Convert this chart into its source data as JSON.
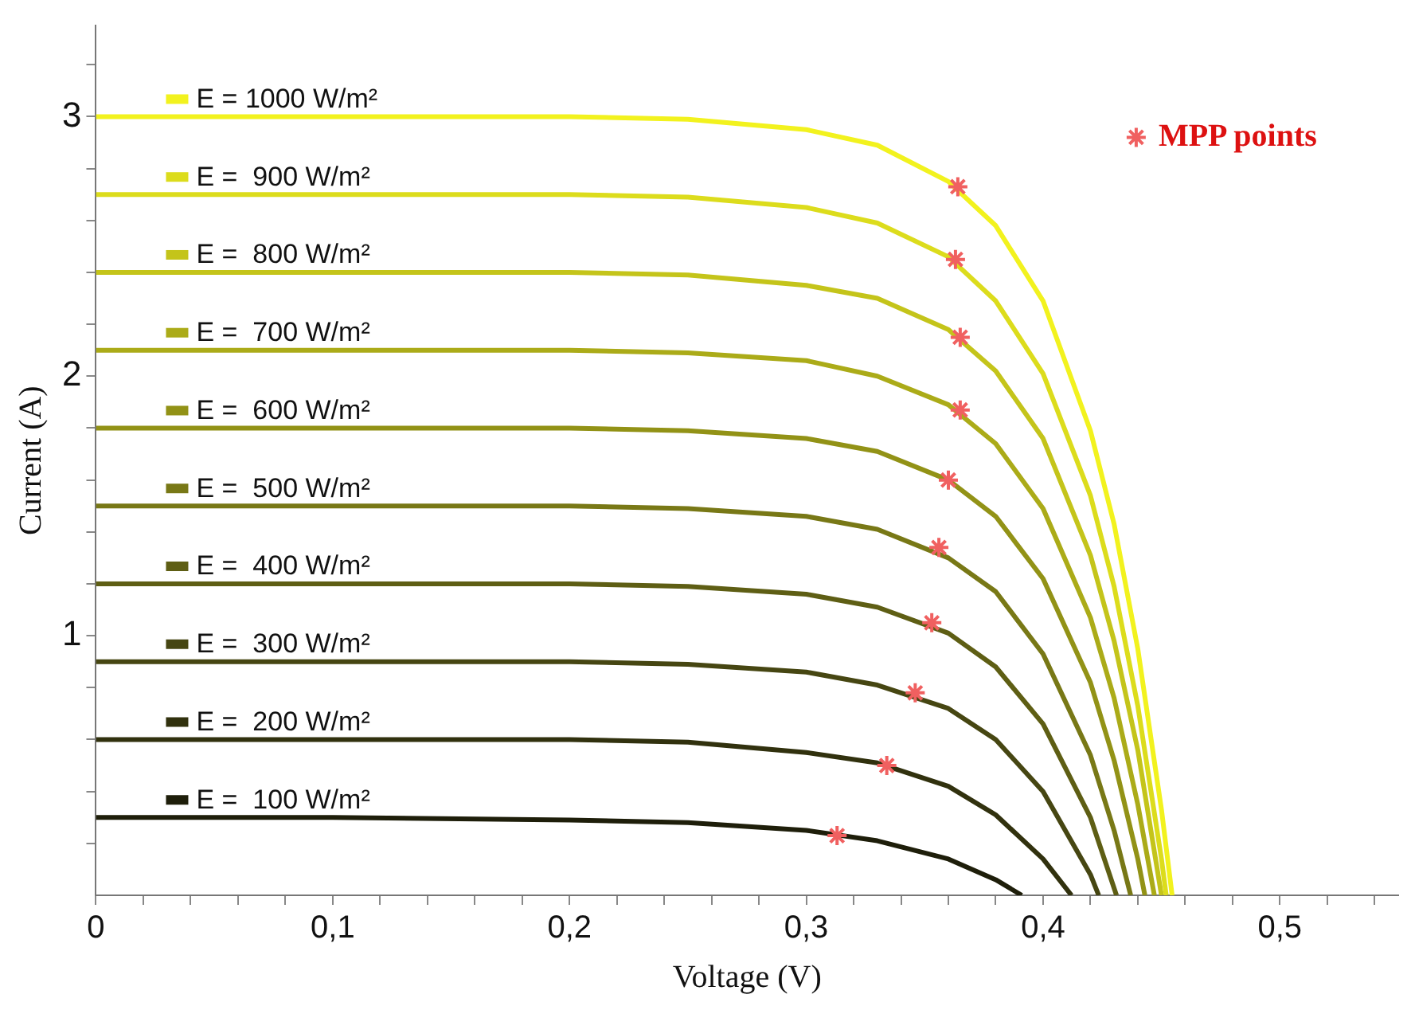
{
  "chart_data": {
    "type": "line",
    "xlabel": "Voltage (V)",
    "ylabel": "Current (A)",
    "xlim": [
      0,
      0.55
    ],
    "ylim": [
      0,
      3.35
    ],
    "xticks": [
      0,
      {
        "value": 0.02,
        "label": null
      },
      {
        "value": 0.04,
        "label": null
      },
      {
        "value": 0.06,
        "label": null
      },
      {
        "value": 0.08,
        "label": null
      },
      {
        "value": 0.1,
        "label": "0,1"
      },
      {
        "value": 0.12,
        "label": null
      },
      {
        "value": 0.14,
        "label": null
      },
      {
        "value": 0.16,
        "label": null
      },
      {
        "value": 0.18,
        "label": null
      },
      {
        "value": 0.2,
        "label": "0,2"
      },
      {
        "value": 0.22,
        "label": null
      },
      {
        "value": 0.24,
        "label": null
      },
      {
        "value": 0.26,
        "label": null
      },
      {
        "value": 0.28,
        "label": null
      },
      {
        "value": 0.3,
        "label": "0,3"
      },
      {
        "value": 0.32,
        "label": null
      },
      {
        "value": 0.34,
        "label": null
      },
      {
        "value": 0.36,
        "label": null
      },
      {
        "value": 0.38,
        "label": null
      },
      {
        "value": 0.4,
        "label": "0,4"
      },
      {
        "value": 0.42,
        "label": null
      },
      {
        "value": 0.44,
        "label": null
      },
      {
        "value": 0.46,
        "label": null
      },
      {
        "value": 0.48,
        "label": null
      },
      {
        "value": 0.5,
        "label": "0,5"
      },
      {
        "value": 0.52,
        "label": null
      },
      {
        "value": 0.54,
        "label": null
      }
    ],
    "yticks": [
      {
        "value": 0.2,
        "label": null
      },
      {
        "value": 0.4,
        "label": null
      },
      {
        "value": 0.6,
        "label": null
      },
      {
        "value": 0.8,
        "label": null
      },
      1,
      {
        "value": 1.2,
        "label": null
      },
      {
        "value": 1.4,
        "label": null
      },
      {
        "value": 1.6,
        "label": null
      },
      {
        "value": 1.8,
        "label": null
      },
      2,
      {
        "value": 2.2,
        "label": null
      },
      {
        "value": 2.4,
        "label": null
      },
      {
        "value": 2.6,
        "label": null
      },
      {
        "value": 2.8,
        "label": null
      },
      3,
      {
        "value": 3.2,
        "label": null
      }
    ],
    "grid": false,
    "legend": "top right",
    "marker": "none",
    "line_style": "solid",
    "series": [
      {
        "name": "E = 1000 W/m²",
        "color": "#f2f21e",
        "x": [
          0,
          0.1,
          0.2,
          0.25,
          0.3,
          0.33,
          0.36,
          0.38,
          0.4,
          0.42,
          0.43,
          0.44,
          0.45,
          0.4545
        ],
        "values": [
          3.0,
          3.0,
          3.0,
          2.99,
          2.95,
          2.89,
          2.75,
          2.58,
          2.29,
          1.79,
          1.43,
          0.95,
          0.33,
          0
        ]
      },
      {
        "name": "E =  900 W/m²",
        "color": "#dcdc1c",
        "x": [
          0,
          0.1,
          0.2,
          0.25,
          0.3,
          0.33,
          0.36,
          0.38,
          0.4,
          0.42,
          0.43,
          0.44,
          0.45,
          0.452
        ],
        "values": [
          2.7,
          2.7,
          2.7,
          2.69,
          2.65,
          2.59,
          2.46,
          2.29,
          2.01,
          1.54,
          1.19,
          0.73,
          0.14,
          0
        ]
      },
      {
        "name": "E =  800 W/m²",
        "color": "#c4c41a",
        "x": [
          0,
          0.1,
          0.2,
          0.25,
          0.3,
          0.33,
          0.36,
          0.38,
          0.4,
          0.42,
          0.43,
          0.44,
          0.45
        ],
        "values": [
          2.4,
          2.4,
          2.4,
          2.39,
          2.35,
          2.3,
          2.18,
          2.02,
          1.76,
          1.31,
          0.98,
          0.56,
          0
        ]
      },
      {
        "name": "E =  700 W/m²",
        "color": "#abab18",
        "x": [
          0,
          0.1,
          0.2,
          0.25,
          0.3,
          0.33,
          0.36,
          0.38,
          0.4,
          0.42,
          0.43,
          0.44,
          0.447
        ],
        "values": [
          2.1,
          2.1,
          2.1,
          2.09,
          2.06,
          2.0,
          1.89,
          1.74,
          1.49,
          1.07,
          0.76,
          0.35,
          0
        ]
      },
      {
        "name": "E =  600 W/m²",
        "color": "#929216",
        "x": [
          0,
          0.1,
          0.2,
          0.25,
          0.3,
          0.33,
          0.36,
          0.38,
          0.4,
          0.42,
          0.43,
          0.44,
          0.443
        ],
        "values": [
          1.8,
          1.8,
          1.8,
          1.79,
          1.76,
          1.71,
          1.6,
          1.46,
          1.22,
          0.82,
          0.52,
          0.14,
          0
        ]
      },
      {
        "name": "E =  500 W/m²",
        "color": "#787816",
        "x": [
          0,
          0.1,
          0.2,
          0.25,
          0.3,
          0.33,
          0.36,
          0.38,
          0.4,
          0.42,
          0.43,
          0.437
        ],
        "values": [
          1.5,
          1.5,
          1.5,
          1.49,
          1.46,
          1.41,
          1.3,
          1.17,
          0.93,
          0.54,
          0.25,
          0
        ]
      },
      {
        "name": "E =  400 W/m²",
        "color": "#5e5e14",
        "x": [
          0,
          0.1,
          0.2,
          0.25,
          0.3,
          0.33,
          0.36,
          0.38,
          0.4,
          0.42,
          0.431
        ],
        "values": [
          1.2,
          1.2,
          1.2,
          1.19,
          1.16,
          1.11,
          1.01,
          0.88,
          0.66,
          0.3,
          0
        ]
      },
      {
        "name": "E =  300 W/m²",
        "color": "#464612",
        "x": [
          0,
          0.1,
          0.2,
          0.25,
          0.3,
          0.33,
          0.36,
          0.38,
          0.4,
          0.42,
          0.4235
        ],
        "values": [
          0.9,
          0.9,
          0.9,
          0.89,
          0.86,
          0.81,
          0.72,
          0.6,
          0.4,
          0.08,
          0
        ]
      },
      {
        "name": "E =  200 W/m²",
        "color": "#31310e",
        "x": [
          0,
          0.1,
          0.2,
          0.25,
          0.3,
          0.33,
          0.36,
          0.38,
          0.4,
          0.412
        ],
        "values": [
          0.6,
          0.6,
          0.6,
          0.59,
          0.55,
          0.51,
          0.42,
          0.31,
          0.14,
          0
        ]
      },
      {
        "name": "E =  100 W/m²",
        "color": "#1e1e0a",
        "x": [
          0,
          0.1,
          0.2,
          0.25,
          0.3,
          0.33,
          0.36,
          0.38,
          0.391
        ],
        "values": [
          0.3,
          0.3,
          0.29,
          0.28,
          0.25,
          0.21,
          0.14,
          0.06,
          0
        ]
      },
      {
        "name": "MPP points",
        "type": "scatter",
        "marker": "cross",
        "color": "#f06060",
        "x": [
          0.364,
          0.363,
          0.365,
          0.365,
          0.36,
          0.356,
          0.353,
          0.346,
          0.334,
          0.313
        ],
        "values": [
          2.73,
          2.45,
          2.15,
          1.87,
          1.6,
          1.34,
          1.05,
          0.78,
          0.5,
          0.23
        ]
      }
    ]
  }
}
